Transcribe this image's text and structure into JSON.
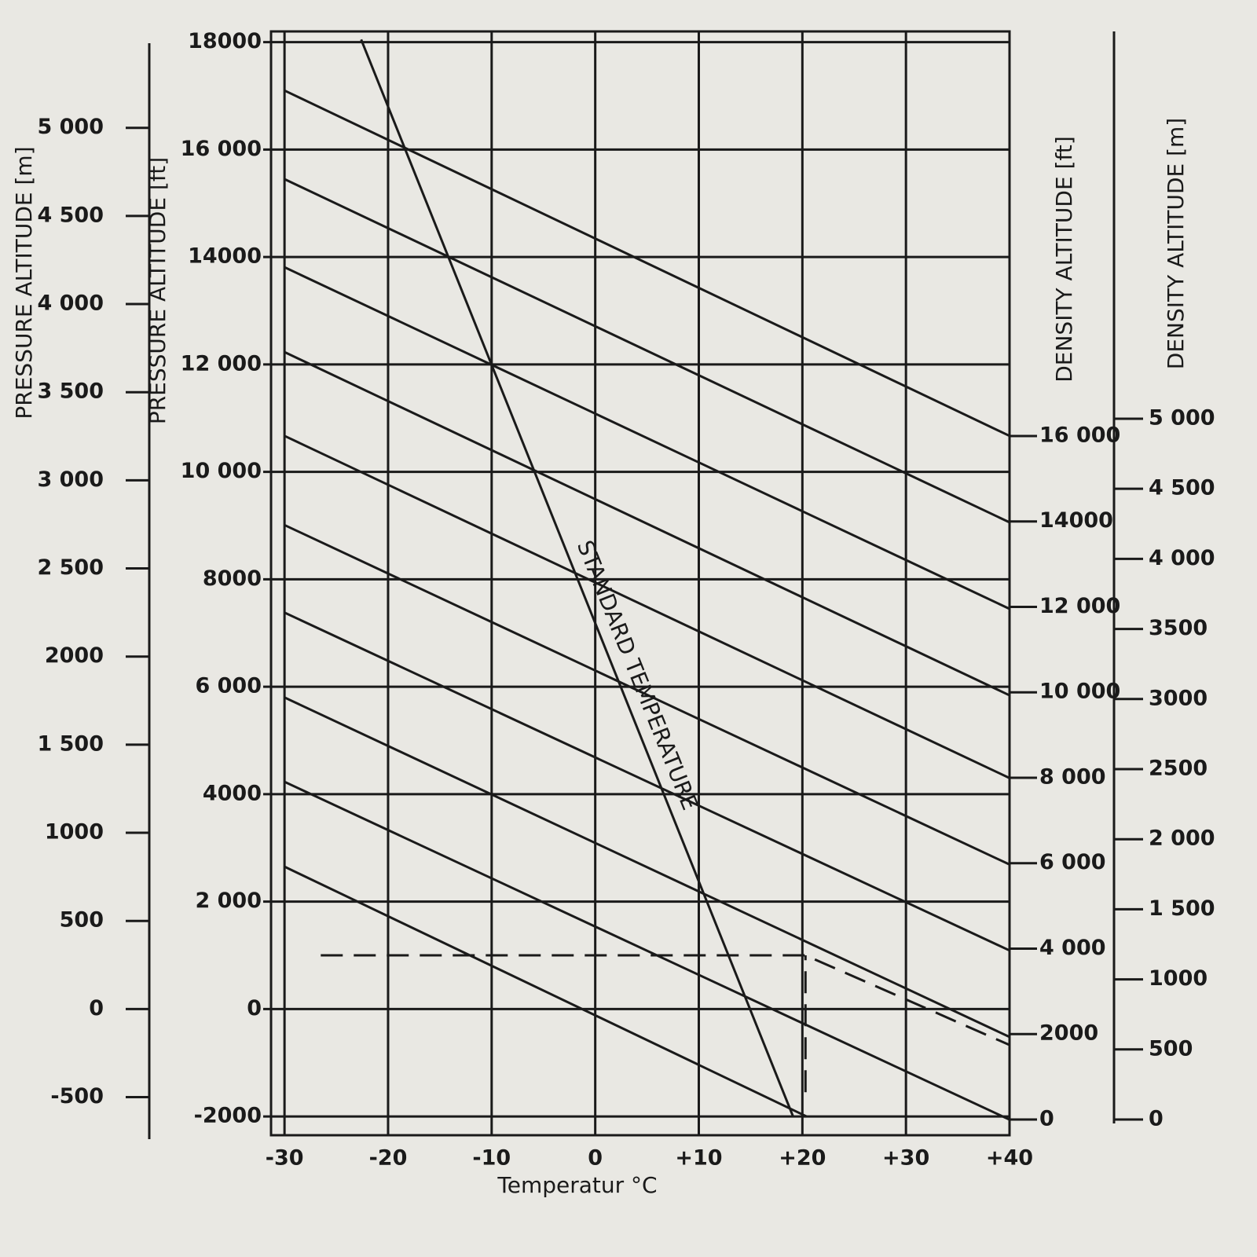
{
  "chart_data": {
    "type": "line",
    "xlabel": "Temperatur °C",
    "ylabel_left_m": "PRESSURE ALTITUDE [m]",
    "ylabel_left_ft": "PRESSURE ALTITUDE [ft]",
    "ylabel_right_ft": "DENSITY ALTITUDE [ft]",
    "ylabel_right_m": "DENSITY ALTITUDE [m]",
    "annotation": "STANDARD TEMPERATURE",
    "xlim": [
      -31.3,
      40
    ],
    "xticks": [
      -30,
      -20,
      -10,
      0,
      {
        "value": 10,
        "label": "+10"
      },
      {
        "value": 20,
        "label": "+20"
      },
      {
        "value": 30,
        "label": "+30"
      },
      {
        "value": 40,
        "label": "+40"
      }
    ],
    "ylim": [
      -2350,
      18200
    ],
    "yticks": [
      -2000,
      0,
      {
        "value": 2000,
        "label": "2 000"
      },
      4000,
      {
        "value": 6000,
        "label": "6 000"
      },
      8000,
      {
        "value": 10000,
        "label": "10 000"
      },
      {
        "value": 12000,
        "label": "12 000"
      },
      14000,
      {
        "value": 16000,
        "label": "16 000"
      },
      18000
    ],
    "ylim_left_m": [
      -716,
      5547
    ],
    "yticks_left_m": [
      -500,
      0,
      500,
      1000,
      {
        "value": 1500,
        "label": "1 500"
      },
      2000,
      {
        "value": 2500,
        "label": "2 500"
      },
      {
        "value": 3000,
        "label": "3 000"
      },
      {
        "value": 3500,
        "label": "3 500"
      },
      {
        "value": 4000,
        "label": "4 000"
      },
      {
        "value": 4500,
        "label": "4 500"
      },
      {
        "value": 5000,
        "label": "5 000"
      }
    ],
    "ylim_right_ft": [
      -368,
      25470
    ],
    "yticks_right_ft": [
      0,
      2000,
      {
        "value": 4000,
        "label": "4 000"
      },
      {
        "value": 6000,
        "label": "6 000"
      },
      {
        "value": 8000,
        "label": "8 000"
      },
      {
        "value": 10000,
        "label": "10 000"
      },
      {
        "value": 12000,
        "label": "12 000"
      },
      14000,
      {
        "value": 16000,
        "label": "16 000"
      }
    ],
    "ylim_right_m": [
      -112,
      7763
    ],
    "yticks_right_m": [
      0,
      500,
      1000,
      {
        "value": 1500,
        "label": "1 500"
      },
      {
        "value": 2000,
        "label": "2 000"
      },
      2500,
      3000,
      3500,
      {
        "value": 4000,
        "label": "4 000"
      },
      {
        "value": 4500,
        "label": "4 500"
      },
      {
        "value": 5000,
        "label": "5 000"
      }
    ],
    "grid": true,
    "color": "#1a1a1a",
    "lines": [
      {
        "x": [
          -30,
          40
        ],
        "values": [
          17100,
          10670
        ]
      },
      {
        "x": [
          -30,
          40
        ],
        "values": [
          15450,
          9060
        ]
      },
      {
        "x": [
          -30,
          40
        ],
        "values": [
          13810,
          7450
        ]
      },
      {
        "x": [
          -30,
          40
        ],
        "values": [
          12230,
          5840
        ]
      },
      {
        "x": [
          -30,
          40
        ],
        "values": [
          10670,
          4300
        ]
      },
      {
        "x": [
          -30,
          40
        ],
        "values": [
          9010,
          2690
        ]
      },
      {
        "x": [
          -30,
          40
        ],
        "values": [
          7380,
          1090
        ]
      },
      {
        "x": [
          -30,
          40
        ],
        "values": [
          5800,
          -520
        ]
      },
      {
        "x": [
          -30,
          40
        ],
        "values": [
          4230,
          -2060
        ]
      },
      {
        "x": [
          -30,
          20.4
        ],
        "values": [
          2650,
          -2000
        ]
      }
    ],
    "standard_line": {
      "x": [
        -22.6,
        19.1
      ],
      "values": [
        18050,
        -2000
      ]
    },
    "example_lines": [
      {
        "x": [
          20.3,
          20.3
        ],
        "values": [
          -1550,
          1000
        ]
      },
      {
        "x": [
          -26.5,
          20.3,
          40
        ],
        "values": [
          1000,
          1000,
          -670
        ]
      }
    ]
  }
}
